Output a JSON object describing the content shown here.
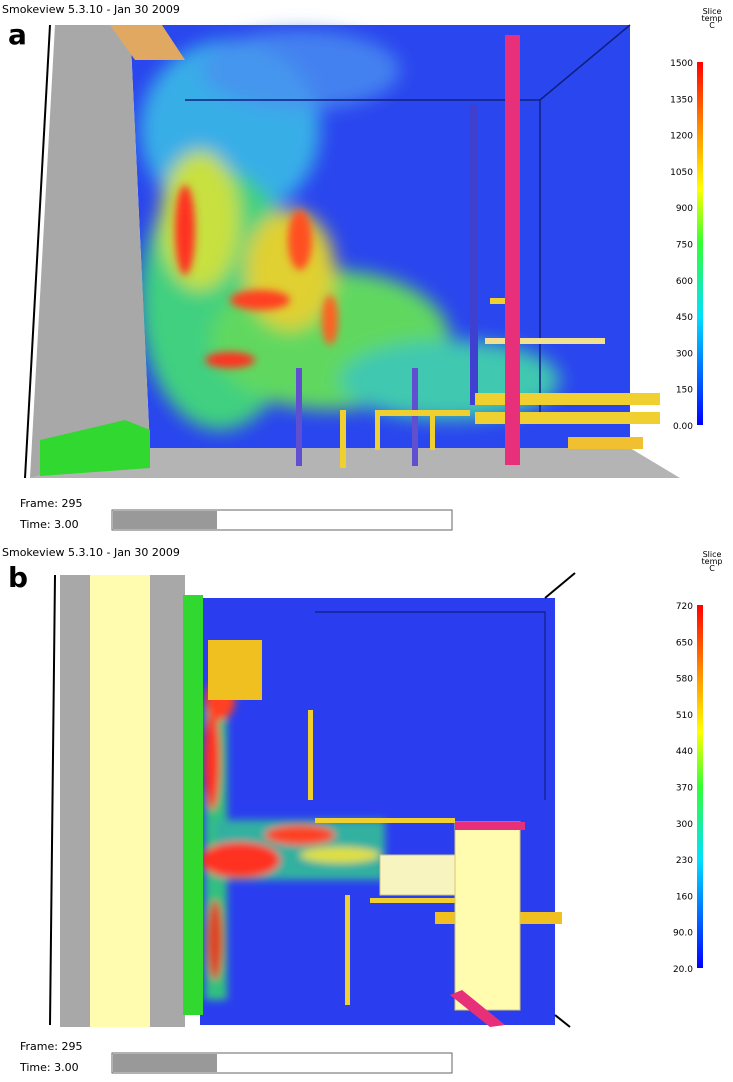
{
  "panels": [
    {
      "title": "Smokeview 5.3.10 - Jan 30 2009",
      "label": "a",
      "colorbar": {
        "title": [
          "Slice",
          "temp",
          "C"
        ],
        "labels": [
          "1500",
          "1350",
          "1200",
          "1050",
          "900",
          "750",
          "600",
          "450",
          "300",
          "150",
          "0.00"
        ]
      },
      "frame": "Frame: 295",
      "time": "Time: 3.00"
    },
    {
      "title": "Smokeview 5.3.10 - Jan 30 2009",
      "label": "b",
      "colorbar": {
        "title": [
          "Slice",
          "temp",
          "C"
        ],
        "labels": [
          "720",
          "650",
          "580",
          "510",
          "440",
          "370",
          "300",
          "230",
          "160",
          "90.0",
          "20.0"
        ]
      },
      "frame": "Frame: 295",
      "time": "Time: 3.00"
    }
  ]
}
